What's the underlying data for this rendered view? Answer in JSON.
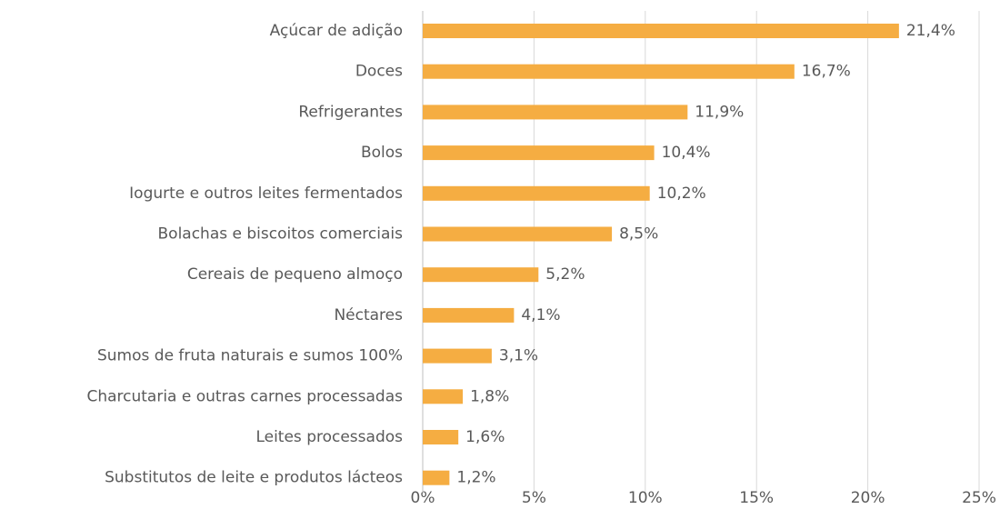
{
  "chart_data": {
    "type": "bar",
    "orientation": "horizontal",
    "categories": [
      "Açúcar de adição",
      "Doces",
      "Refrigerantes",
      "Bolos",
      "Iogurte e outros leites fermentados",
      "Bolachas e biscoitos comerciais",
      "Cereais de pequeno almoço",
      "Néctares",
      "Sumos de fruta naturais e sumos 100%",
      "Charcutaria e outras carnes processadas",
      "Leites processados",
      "Substitutos de leite e produtos lácteos"
    ],
    "values": [
      21.4,
      16.7,
      11.9,
      10.4,
      10.2,
      8.5,
      5.2,
      4.1,
      3.1,
      1.8,
      1.6,
      1.2
    ],
    "value_labels": [
      "21,4%",
      "16,7%",
      "11,9%",
      "10,4%",
      "10,2%",
      "8,5%",
      "5,2%",
      "4,1%",
      "3,1%",
      "1,8%",
      "1,6%",
      "1,2%"
    ],
    "color": "#f5ad42",
    "xlim": [
      0,
      25
    ],
    "xticks": [
      {
        "value": 0,
        "label": "0%"
      },
      {
        "value": 5,
        "label": "5%"
      },
      {
        "value": 10,
        "label": "10%"
      },
      {
        "value": 15,
        "label": "15%"
      },
      {
        "value": 20,
        "label": "20%"
      },
      {
        "value": 25,
        "label": "25%"
      }
    ],
    "grid": true
  }
}
